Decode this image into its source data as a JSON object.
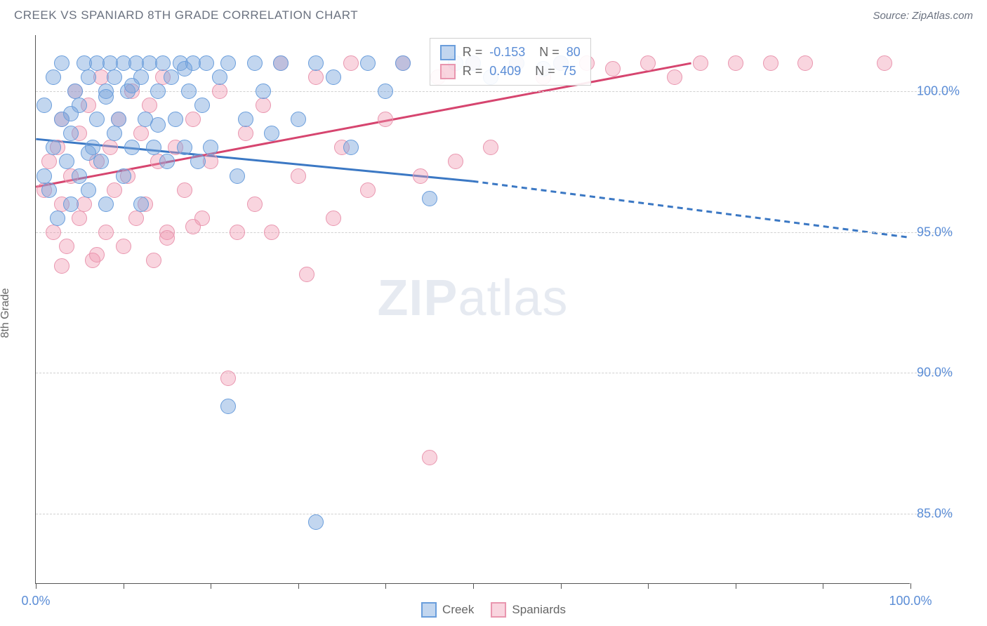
{
  "title": "CREEK VS SPANIARD 8TH GRADE CORRELATION CHART",
  "source_label": "Source: ZipAtlas.com",
  "watermark": {
    "bold": "ZIP",
    "rest": "atlas"
  },
  "y_axis_label": "8th Grade",
  "chart": {
    "type": "scatter",
    "xlim": [
      0,
      100
    ],
    "ylim": [
      82.5,
      102
    ],
    "background_color": "#ffffff",
    "grid_color": "#d0d0d0",
    "axis_color": "#555555",
    "point_radius": 11,
    "point_opacity": 0.55,
    "y_ticks": [
      {
        "v": 85,
        "label": "85.0%"
      },
      {
        "v": 90,
        "label": "90.0%"
      },
      {
        "v": 95,
        "label": "95.0%"
      },
      {
        "v": 100,
        "label": "100.0%"
      }
    ],
    "x_ticks": [
      0,
      10,
      20,
      30,
      40,
      50,
      60,
      70,
      80,
      90,
      100
    ],
    "x_tick_labels": [
      {
        "v": 0,
        "label": "0.0%"
      },
      {
        "v": 100,
        "label": "100.0%"
      }
    ],
    "tick_label_color": "#5b8dd6",
    "tick_label_fontsize": 18
  },
  "series": {
    "creek": {
      "label": "Creek",
      "color_fill": "rgba(120,165,220,0.45)",
      "color_stroke": "#6a9edc",
      "line_color": "#3b78c4",
      "R": "-0.153",
      "N": "80",
      "trend": {
        "x1": 0,
        "y1": 98.3,
        "solid_end_x": 50,
        "solid_end_y": 96.8,
        "x2": 100,
        "y2": 94.8
      },
      "points": [
        [
          1,
          97
        ],
        [
          1,
          99.5
        ],
        [
          1.5,
          96.5
        ],
        [
          2,
          98
        ],
        [
          2,
          100.5
        ],
        [
          2.5,
          95.5
        ],
        [
          3,
          99
        ],
        [
          3,
          101
        ],
        [
          3.5,
          97.5
        ],
        [
          4,
          96
        ],
        [
          4,
          98.5
        ],
        [
          4.5,
          100
        ],
        [
          5,
          99.5
        ],
        [
          5,
          97
        ],
        [
          5.5,
          101
        ],
        [
          6,
          96.5
        ],
        [
          6,
          100.5
        ],
        [
          6.5,
          98
        ],
        [
          7,
          99
        ],
        [
          7,
          101
        ],
        [
          7.5,
          97.5
        ],
        [
          8,
          100
        ],
        [
          8,
          96
        ],
        [
          8.5,
          101
        ],
        [
          9,
          98.5
        ],
        [
          9,
          100.5
        ],
        [
          9.5,
          99
        ],
        [
          10,
          101
        ],
        [
          10,
          97
        ],
        [
          10.5,
          100
        ],
        [
          11,
          98
        ],
        [
          11.5,
          101
        ],
        [
          12,
          96
        ],
        [
          12,
          100.5
        ],
        [
          12.5,
          99
        ],
        [
          13,
          101
        ],
        [
          13.5,
          98
        ],
        [
          14,
          100
        ],
        [
          14.5,
          101
        ],
        [
          15,
          97.5
        ],
        [
          15.5,
          100.5
        ],
        [
          16,
          99
        ],
        [
          16.5,
          101
        ],
        [
          17,
          98
        ],
        [
          17.5,
          100
        ],
        [
          18,
          101
        ],
        [
          18.5,
          97.5
        ],
        [
          19,
          99.5
        ],
        [
          19.5,
          101
        ],
        [
          20,
          98
        ],
        [
          21,
          100.5
        ],
        [
          22,
          101
        ],
        [
          23,
          97
        ],
        [
          24,
          99
        ],
        [
          25,
          101
        ],
        [
          26,
          100
        ],
        [
          27,
          98.5
        ],
        [
          28,
          101
        ],
        [
          30,
          99
        ],
        [
          32,
          101
        ],
        [
          34,
          100.5
        ],
        [
          36,
          98
        ],
        [
          38,
          101
        ],
        [
          40,
          100
        ],
        [
          42,
          101
        ],
        [
          45,
          96.2
        ],
        [
          48,
          101
        ],
        [
          50,
          101
        ],
        [
          52,
          100.5
        ],
        [
          55,
          101
        ],
        [
          58,
          100.8
        ],
        [
          60,
          101
        ],
        [
          22,
          88.8
        ],
        [
          32,
          84.7
        ],
        [
          4,
          99.2
        ],
        [
          6,
          97.8
        ],
        [
          8,
          99.8
        ],
        [
          11,
          100.2
        ],
        [
          14,
          98.8
        ],
        [
          17,
          100.8
        ]
      ]
    },
    "spaniards": {
      "label": "Spaniards",
      "color_fill": "rgba(240,150,175,0.40)",
      "color_stroke": "#e996af",
      "line_color": "#d6456f",
      "R": "0.409",
      "N": "75",
      "trend": {
        "x1": 0,
        "y1": 96.6,
        "x2": 75,
        "y2": 101
      },
      "points": [
        [
          1,
          96.5
        ],
        [
          1.5,
          97.5
        ],
        [
          2,
          95
        ],
        [
          2.5,
          98
        ],
        [
          3,
          96
        ],
        [
          3,
          99
        ],
        [
          3.5,
          94.5
        ],
        [
          4,
          97
        ],
        [
          4.5,
          100
        ],
        [
          5,
          95.5
        ],
        [
          5,
          98.5
        ],
        [
          5.5,
          96
        ],
        [
          6,
          99.5
        ],
        [
          6.5,
          94
        ],
        [
          7,
          97.5
        ],
        [
          7.5,
          100.5
        ],
        [
          8,
          95
        ],
        [
          8.5,
          98
        ],
        [
          9,
          96.5
        ],
        [
          9.5,
          99
        ],
        [
          10,
          94.5
        ],
        [
          10.5,
          97
        ],
        [
          11,
          100
        ],
        [
          11.5,
          95.5
        ],
        [
          12,
          98.5
        ],
        [
          12.5,
          96
        ],
        [
          13,
          99.5
        ],
        [
          13.5,
          94
        ],
        [
          14,
          97.5
        ],
        [
          14.5,
          100.5
        ],
        [
          15,
          95
        ],
        [
          16,
          98
        ],
        [
          17,
          96.5
        ],
        [
          18,
          99
        ],
        [
          19,
          95.5
        ],
        [
          20,
          97.5
        ],
        [
          21,
          100
        ],
        [
          22,
          89.8
        ],
        [
          23,
          95
        ],
        [
          24,
          98.5
        ],
        [
          25,
          96
        ],
        [
          26,
          99.5
        ],
        [
          27,
          95
        ],
        [
          28,
          101
        ],
        [
          30,
          97
        ],
        [
          31,
          93.5
        ],
        [
          32,
          100.5
        ],
        [
          34,
          95.5
        ],
        [
          35,
          98
        ],
        [
          36,
          101
        ],
        [
          38,
          96.5
        ],
        [
          40,
          99
        ],
        [
          42,
          101
        ],
        [
          44,
          97
        ],
        [
          45,
          87
        ],
        [
          46,
          100.5
        ],
        [
          48,
          97.5
        ],
        [
          50,
          101
        ],
        [
          52,
          98
        ],
        [
          55,
          101
        ],
        [
          58,
          100.5
        ],
        [
          60,
          101
        ],
        [
          63,
          101
        ],
        [
          66,
          100.8
        ],
        [
          70,
          101
        ],
        [
          73,
          100.5
        ],
        [
          76,
          101
        ],
        [
          80,
          101
        ],
        [
          84,
          101
        ],
        [
          88,
          101
        ],
        [
          97,
          101
        ],
        [
          3,
          93.8
        ],
        [
          7,
          94.2
        ],
        [
          15,
          94.8
        ],
        [
          18,
          95.2
        ]
      ]
    }
  },
  "stats_legend": {
    "R_label": "R =",
    "N_label": "N ="
  },
  "bottom_legend": [
    {
      "key": "creek"
    },
    {
      "key": "spaniards"
    }
  ]
}
